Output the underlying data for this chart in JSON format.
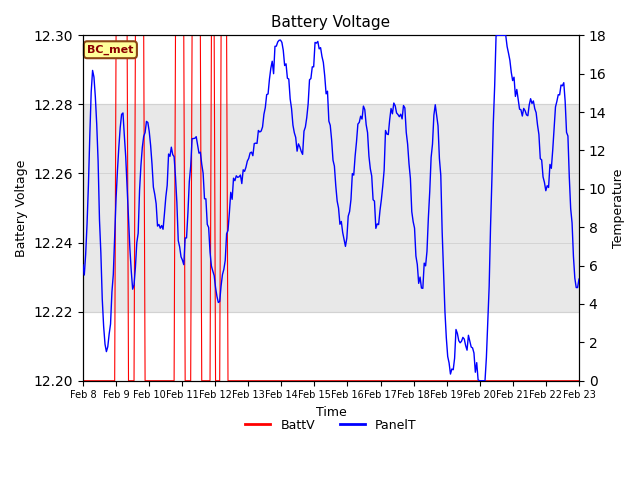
{
  "title": "Battery Voltage",
  "xlabel": "Time",
  "ylabel_left": "Battery Voltage",
  "ylabel_right": "Temperature",
  "xlim_days": [
    0,
    15
  ],
  "ylim_left": [
    12.2,
    12.3
  ],
  "ylim_right": [
    0,
    18
  ],
  "yticks_left": [
    12.2,
    12.22,
    12.24,
    12.26,
    12.28,
    12.3
  ],
  "yticks_right": [
    0,
    2,
    4,
    6,
    8,
    10,
    12,
    14,
    16,
    18
  ],
  "xtick_labels": [
    "Feb 8",
    "Feb 9",
    "Feb 10",
    "Feb 11",
    "Feb 12",
    "Feb 13",
    "Feb 14",
    "Feb 15",
    "Feb 16",
    "Feb 17",
    "Feb 18",
    "Feb 19",
    "Feb 20",
    "Feb 21",
    "Feb 22",
    "Feb 23"
  ],
  "shade_ymin": 12.22,
  "shade_ymax": 12.28,
  "shade_color": "#d3d3d3",
  "batt_color": "#ff0000",
  "panel_color": "#0000ff",
  "bc_met_label": "BC_met",
  "bc_met_x": 0.13,
  "bc_met_y": 12.295,
  "legend_items": [
    "BattV",
    "PanelT"
  ],
  "background_color": "#ffffff",
  "grid_color": "#cccccc"
}
